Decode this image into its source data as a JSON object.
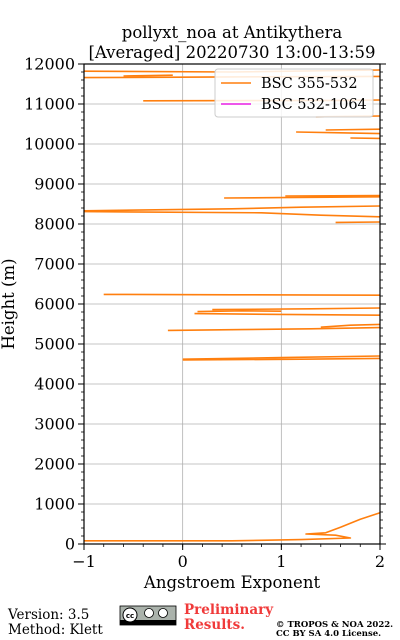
{
  "chart_data": {
    "type": "line",
    "title_line1": "pollyxt_noa at Antikythera",
    "title_line2": "[Averaged] 20220730 13:00-13:59",
    "xlabel": "Angstroem Exponent",
    "ylabel": "Height (m)",
    "xlim": [
      -1,
      2
    ],
    "ylim": [
      0,
      12000
    ],
    "xticks": [
      -1,
      0,
      1,
      2
    ],
    "xtick_labels": [
      "−1",
      "0",
      "1",
      "2"
    ],
    "yticks": [
      0,
      1000,
      2000,
      3000,
      4000,
      5000,
      6000,
      7000,
      8000,
      9000,
      10000,
      11000,
      12000
    ],
    "grid": true,
    "legend_position": "top-right",
    "series": [
      {
        "name": "BSC 355-532",
        "color": "#ff7f0e",
        "segments": [
          [
            [
              -1.0,
              80
            ],
            [
              0.5,
              80
            ],
            [
              1.2,
              110
            ],
            [
              1.7,
              150
            ],
            [
              1.55,
              220
            ],
            [
              1.25,
              250
            ],
            [
              1.45,
              280
            ],
            [
              1.6,
              420
            ],
            [
              1.8,
              620
            ],
            [
              2.0,
              780
            ]
          ],
          [
            [
              0.0,
              4620
            ],
            [
              1.0,
              4660
            ],
            [
              2.0,
              4700
            ]
          ],
          [
            [
              0.0,
              4600
            ],
            [
              1.2,
              4620
            ],
            [
              2.0,
              4640
            ]
          ],
          [
            [
              -0.15,
              5340
            ],
            [
              0.6,
              5360
            ],
            [
              1.3,
              5380
            ],
            [
              2.0,
              5410
            ]
          ],
          [
            [
              1.4,
              5420
            ],
            [
              1.7,
              5470
            ],
            [
              2.0,
              5490
            ]
          ],
          [
            [
              0.12,
              5760
            ],
            [
              1.0,
              5740
            ],
            [
              2.0,
              5720
            ]
          ],
          [
            [
              0.15,
              5810
            ],
            [
              0.6,
              5830
            ],
            [
              1.0,
              5820
            ]
          ],
          [
            [
              0.3,
              5860
            ],
            [
              1.3,
              5880
            ],
            [
              2.0,
              5900
            ]
          ],
          [
            [
              -0.8,
              6240
            ],
            [
              0.5,
              6230
            ],
            [
              2.0,
              6220
            ]
          ],
          [
            [
              -1.0,
              8330
            ],
            [
              0.5,
              8380
            ],
            [
              1.2,
              8420
            ],
            [
              2.0,
              8450
            ]
          ],
          [
            [
              -1.0,
              8310
            ],
            [
              0.8,
              8280
            ],
            [
              1.4,
              8220
            ],
            [
              2.0,
              8180
            ]
          ],
          [
            [
              1.55,
              8040
            ],
            [
              2.0,
              8050
            ]
          ],
          [
            [
              0.42,
              8650
            ],
            [
              1.0,
              8660
            ],
            [
              2.0,
              8680
            ]
          ],
          [
            [
              1.04,
              8700
            ],
            [
              2.0,
              8710
            ]
          ],
          [
            [
              1.15,
              10300
            ],
            [
              1.6,
              10280
            ],
            [
              2.0,
              10260
            ]
          ],
          [
            [
              1.45,
              10350
            ],
            [
              2.0,
              10370
            ]
          ],
          [
            [
              1.7,
              10150
            ],
            [
              2.0,
              10140
            ]
          ],
          [
            [
              1.35,
              10680
            ],
            [
              2.0,
              10700
            ]
          ],
          [
            [
              -1.0,
              11820
            ],
            [
              0.5,
              11800
            ],
            [
              2.0,
              11850
            ]
          ],
          [
            [
              -0.6,
              11700
            ],
            [
              -0.1,
              11720
            ]
          ],
          [
            [
              -1.0,
              11660
            ],
            [
              0.8,
              11680
            ],
            [
              2.0,
              11690
            ]
          ],
          [
            [
              -0.4,
              11080
            ],
            [
              1.6,
              11090
            ],
            [
              2.0,
              11100
            ]
          ]
        ]
      },
      {
        "name": "BSC 532-1064",
        "color": "#e91ee3",
        "segments": []
      }
    ]
  },
  "footer": {
    "version": "Version: 3.5",
    "method": "Method: Klett",
    "preliminary_line1": "Preliminary",
    "preliminary_line2": "Results.",
    "copyright_line1": "© TROPOS & NOA 2022.",
    "copyright_line2": "CC BY SA 4.0 License.",
    "license_badge": "cc-by-sa-badge"
  }
}
